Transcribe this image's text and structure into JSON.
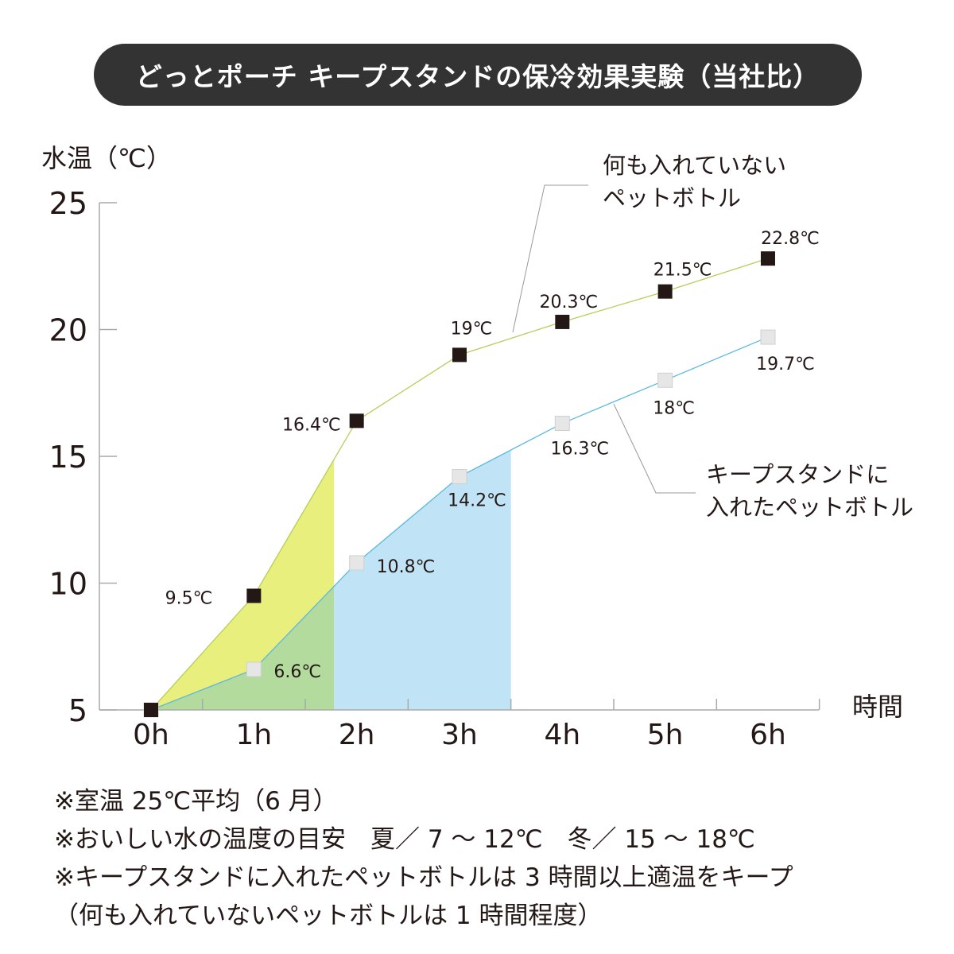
{
  "title": "どっとポーチ キープスタンドの保冷効果実験（当社比）",
  "chart_data": {
    "type": "line",
    "title": "どっとポーチ キープスタンドの保冷効果実験（当社比）",
    "ylabel": "水温（℃）",
    "xlabel": "時間",
    "categories": [
      "0h",
      "1h",
      "2h",
      "3h",
      "4h",
      "5h",
      "6h"
    ],
    "yticks": [
      "5",
      "10",
      "15",
      "20",
      "25"
    ],
    "ylim": [
      5,
      25
    ],
    "grid": false,
    "series": [
      {
        "name": "何も入れていないペットボトル",
        "name_lines": [
          "何も入れていない",
          "ペットボトル"
        ],
        "values": [
          5,
          9.5,
          16.4,
          19,
          20.3,
          21.5,
          22.8
        ],
        "labels": [
          "",
          "9.5℃",
          "16.4℃",
          "19℃",
          "20.3℃",
          "21.5℃",
          "22.8℃"
        ],
        "line_color": "#b5cf5a",
        "marker_color": "#231815",
        "fill_color": "#e9ef7d",
        "fill_until_hours": 1.78
      },
      {
        "name": "キープスタンドに入れたペットボトル",
        "name_lines": [
          "キープスタンドに",
          "入れたペットボトル"
        ],
        "values": [
          5,
          6.6,
          10.8,
          14.2,
          16.3,
          18,
          19.7
        ],
        "labels": [
          "",
          "6.6℃",
          "10.8℃",
          "14.2℃",
          "16.3℃",
          "18℃",
          "19.7℃"
        ],
        "line_color": "#5bb8e0",
        "marker_color": "#e6e6e6",
        "fill_color": "#c0e4f5",
        "overlap_fill_color": "#b3db9e",
        "fill_until_hours": 3.5
      }
    ]
  },
  "notes": [
    "※室温 25℃平均（6 月）",
    "※おいしい水の温度の目安　夏／ 7 ～ 12℃　冬／ 15 ～ 18℃",
    "※キープスタンドに入れたペットボトルは 3 時間以上適温をキープ",
    "（何も入れていないペットボトルは 1 時間程度）"
  ]
}
